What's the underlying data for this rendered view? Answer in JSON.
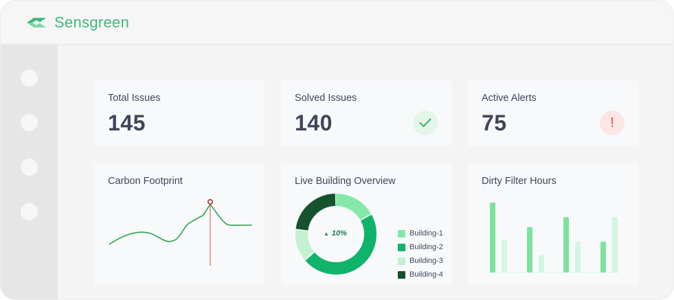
{
  "app": {
    "name": "Sensgreen",
    "brand_color": "#3fb87d"
  },
  "sidebar": {
    "items": [
      "nav-1",
      "nav-2",
      "nav-3",
      "nav-4"
    ]
  },
  "stats": {
    "total_issues": {
      "label": "Total Issues",
      "value": "145"
    },
    "solved_issues": {
      "label": "Solved Issues",
      "value": "140",
      "icon": "check-icon"
    },
    "active_alerts": {
      "label": "Active Alerts",
      "value": "75",
      "icon": "alert-icon",
      "icon_text": "!"
    }
  },
  "carbon": {
    "title": "Carbon Footprint",
    "line_color": "#2aa44f",
    "marker_color": "#b42a2a"
  },
  "building": {
    "title": "Live Building Overview",
    "center_label": "10%",
    "legend": [
      {
        "label": "Building-1",
        "color": "#86e8a8"
      },
      {
        "label": "Building-2",
        "color": "#10b36a"
      },
      {
        "label": "Building-3",
        "color": "#c4f2d0"
      },
      {
        "label": "Building-4",
        "color": "#14532d"
      }
    ],
    "segments": [
      0.17,
      0.47,
      0.13,
      0.23
    ]
  },
  "filter": {
    "title": "Dirty Filter Hours",
    "bars": [
      1.0,
      0.47,
      0.65,
      0.25,
      0.79,
      0.44,
      0.44,
      0.79
    ],
    "bar_colors": [
      "#7de2a0",
      "#d2f6df",
      "#7de2a0",
      "#d2f6df",
      "#7de2a0",
      "#d2f6df",
      "#7de2a0",
      "#d2f6df"
    ]
  }
}
